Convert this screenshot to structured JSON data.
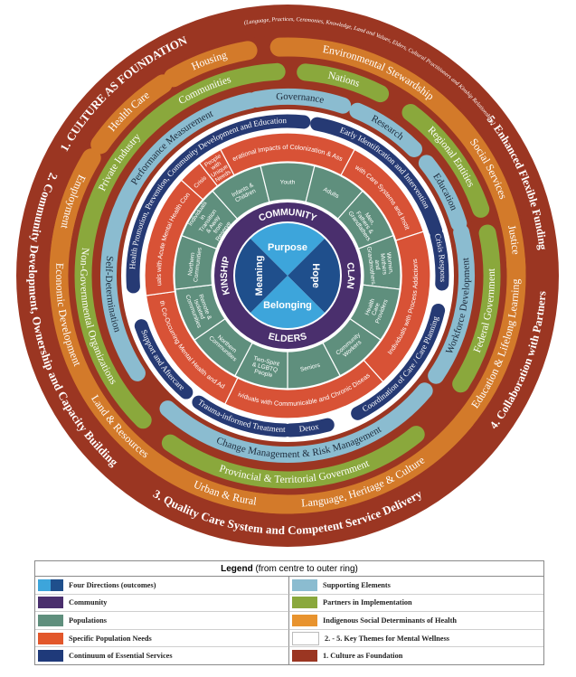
{
  "colors": {
    "outer": "#9b3622",
    "orange": "#d37a2a",
    "green": "#8aa83c",
    "light_blue": "#8bbcd0",
    "navy": "#263a74",
    "red": "#d85236",
    "teal": "#5f8f7d",
    "community_purple": "#4a2f6d",
    "center_light": "#3da5db",
    "center_dark": "#1f4f8c",
    "white": "#ffffff"
  },
  "outer_ring": {
    "themes": [
      "1. CULTURE AS FOUNDATION",
      "(Language, Practices, Ceremonies, Knowledge, Land and Values, Elders, Cultural Practitioners and Kinship Relationships)",
      "2. Community Development, Ownership and Capacity Building",
      "3. Quality Care System and Competent Service Delivery",
      "4. Collaboration with Partners",
      "5. Enhanced Flexible Funding"
    ]
  },
  "social_determinants": [
    "Housing",
    "Environmental Stewardship",
    "Social Services",
    "Justice",
    "Education & Lifelong Learning",
    "Language, Heritage & Culture",
    "Urban & Rural",
    "Land & Resources",
    "Economic Development",
    "Employment",
    "Health Care"
  ],
  "partners": [
    "Communities",
    "Nations",
    "Regional Entities",
    "Federal Government",
    "Provincial & Territorial Government",
    "Non-Governmental Organizations",
    "Private Industry"
  ],
  "supporting_elements": [
    "Governance",
    "Research",
    "Education",
    "Workforce Development",
    "Change Management & Risk Management",
    "Self-Determination",
    "Performance Measurement"
  ],
  "essential_services": [
    "Early Identification and Intervention",
    "Crisis Response",
    "Coordination of Care / Care Planning",
    "Detox",
    "Trauma-informed Treatment",
    "Support and Aftercare",
    "Health Promotion, Prevention, Community Development and Education"
  ],
  "specific_needs": [
    "Intergenerational Impacts of Colonization & Assimilation",
    "People Involved with Care Systems and Institutional Systems",
    "Individuals with Process Addictions",
    "Individuals with Communicable and Chronic Diseases",
    "Individuals with Co-Occurring Mental Health and Addiction Issues",
    "Individuals with Acute Mental Health Concerns",
    "Crisis",
    "People with Unique Needs"
  ],
  "populations": [
    "Infants & Children",
    "Youth",
    "Adults",
    "Men, Fathers & Grandfathers",
    "Women, Mothers and Grandmothers",
    "Health Care Providers",
    "Community Workers",
    "Seniors",
    "Two-Spirit & LGBTQ People",
    "Northern Communities",
    "Remote & Isolated Communities",
    "Northern Communities",
    "Individuals in Transition & Away from Reserve"
  ],
  "community_ring": [
    "COMMUNITY",
    "CLAN",
    "ELDERS",
    "KINSHIP"
  ],
  "four_directions": [
    "Purpose",
    "Hope",
    "Belonging",
    "Meaning"
  ],
  "legend": {
    "title_bold": "Legend",
    "title_rest": " (from centre to outer ring)",
    "items": [
      {
        "label": "Four Directions (outcomes)",
        "color": "#3da5db",
        "color2": "#1f4f8c"
      },
      {
        "label": "Supporting Elements",
        "color": "#8bbcd0"
      },
      {
        "label": "Community",
        "color": "#4a2f6d"
      },
      {
        "label": "Partners in Implementation",
        "color": "#8aa83c"
      },
      {
        "label": "Populations",
        "color": "#5f8f7d"
      },
      {
        "label": "Indigenous Social Determinants of Health",
        "color": "#e8932e"
      },
      {
        "label": "Specific Population Needs",
        "color": "#e2572b"
      },
      {
        "label": "2. - 5. Key Themes for Mental Wellness",
        "color": "#ffffff"
      },
      {
        "label": "Continuum of Essential Services",
        "color": "#1f3a7a"
      },
      {
        "label": "1.  Culture as Foundation",
        "color": "#9b3622"
      }
    ]
  }
}
